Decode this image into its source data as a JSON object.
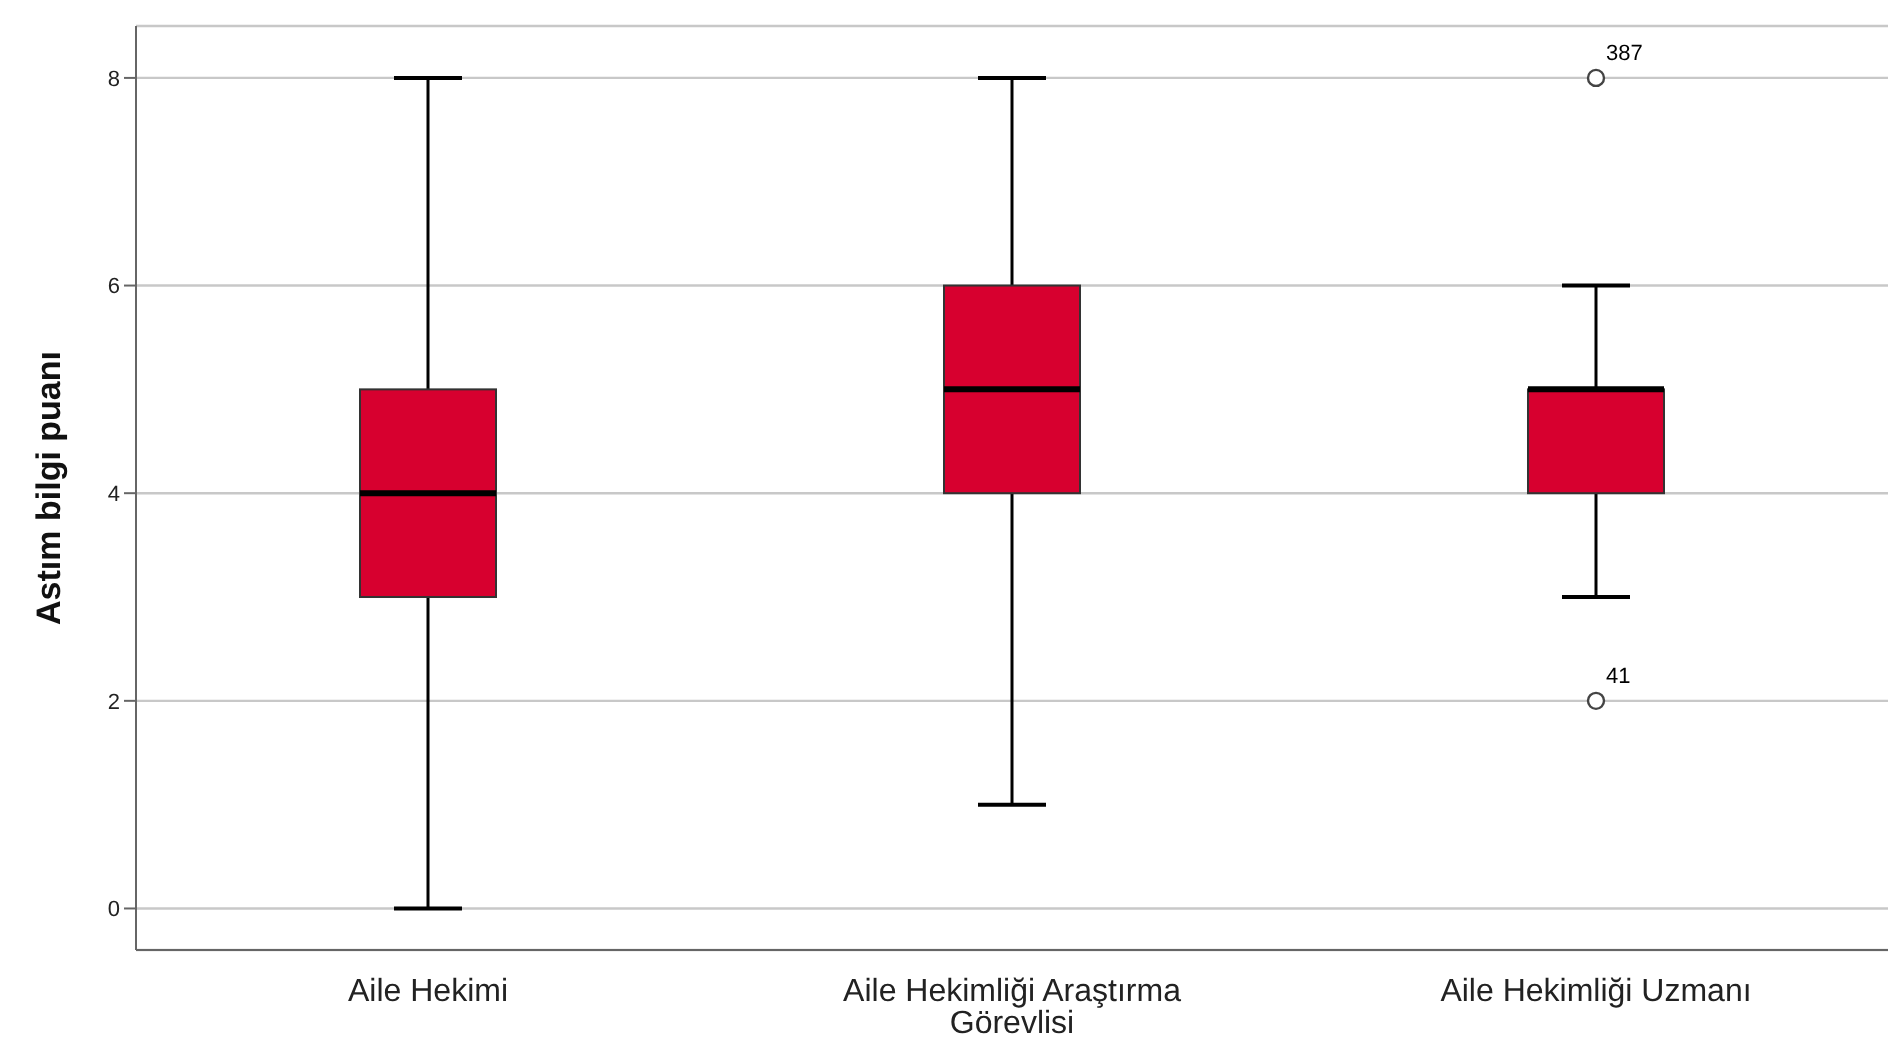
{
  "chart_data": {
    "type": "box",
    "ylabel": "Astım bilgi puanı",
    "categories": [
      "Aile Hekimi",
      "Aile Hekimliği Araştırma Görevlisi",
      "Aile Hekimliği Uzmanı"
    ],
    "series": [
      {
        "color": "#d7002f",
        "boxes": [
          {
            "low": 0,
            "q1": 3,
            "median": 4,
            "q3": 5,
            "high": 8
          },
          {
            "low": 1,
            "q1": 4,
            "median": 5,
            "q3": 6,
            "high": 8
          },
          {
            "low": 3,
            "q1": 4,
            "median": 5,
            "q3": 5,
            "high": 6,
            "outliers": [
              8,
              2
            ]
          }
        ]
      }
    ],
    "ylim": [
      -0.4,
      8.5
    ],
    "yticks": [
      0,
      2,
      4,
      6,
      8
    ],
    "grid": "y",
    "annotations": [
      "387",
      "41"
    ]
  }
}
